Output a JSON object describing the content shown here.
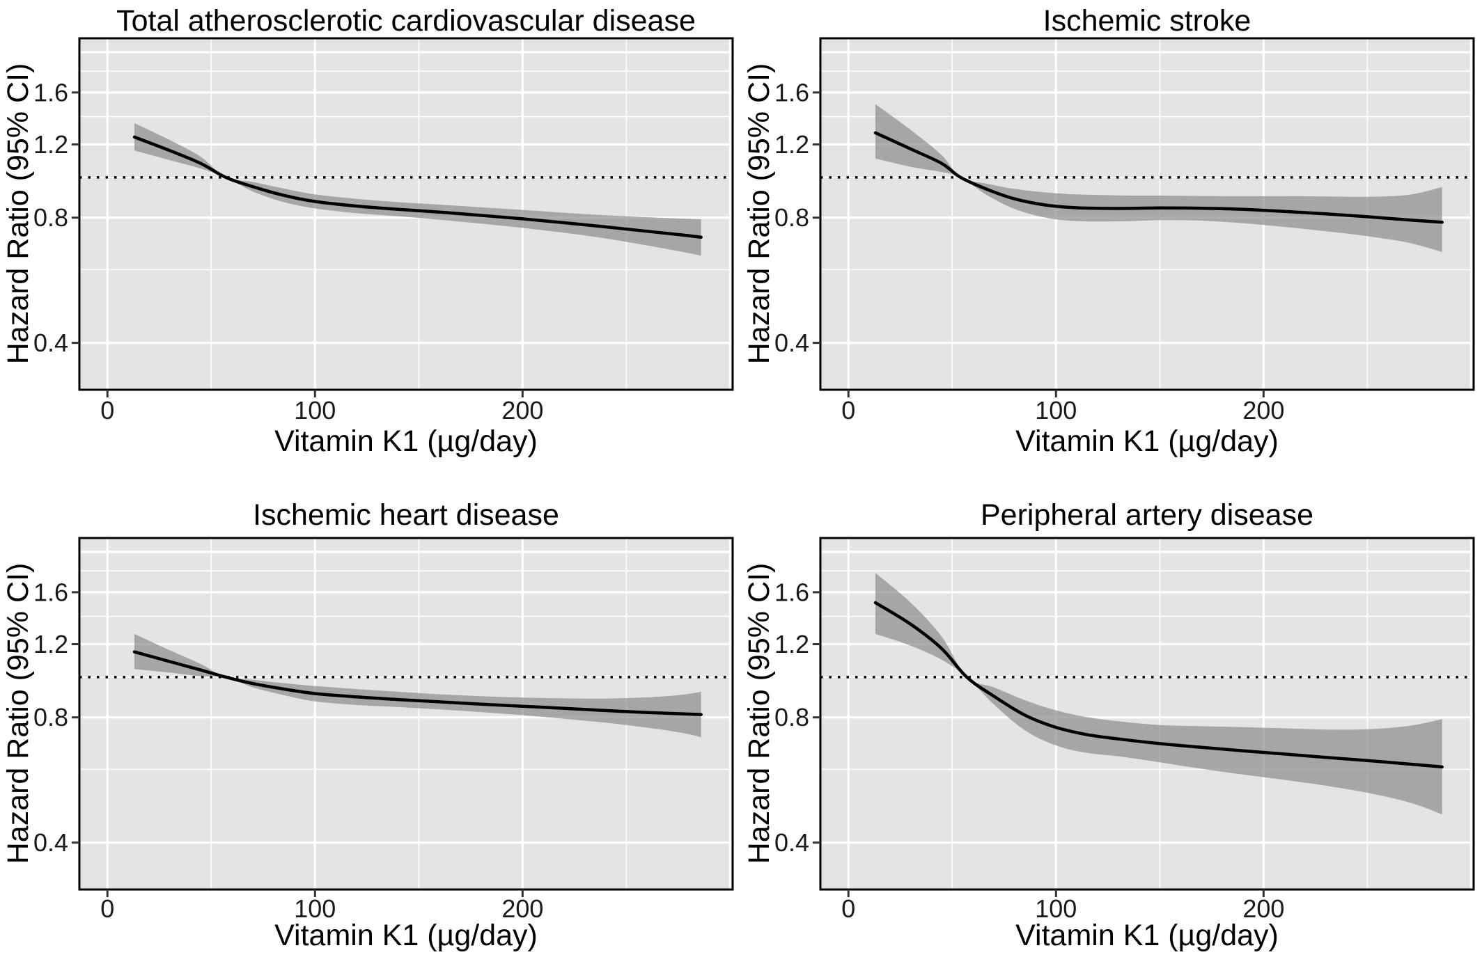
{
  "figure": {
    "background": "#ffffff",
    "panel_background": "#e4e4e4",
    "gridline_color": "#ffffff",
    "ribbon_color": "#8c8c8c",
    "ribbon_opacity": 0.7,
    "curve_color": "#000000",
    "reference_line_color": "#000000",
    "border_color": "#000000",
    "tick_mark_color": "#333333",
    "tick_label_color": "#1a1a1a"
  },
  "axes": {
    "x_label": "Vitamin K1 (µg/day)",
    "y_label": "Hazard Ratio (95% CI)",
    "y_scale": "log10",
    "x_domain": [
      -13.5,
      301.2
    ],
    "y_domain": [
      0.3085,
      2.16
    ],
    "x_ticks": [
      0,
      100,
      200
    ],
    "x_tick_labels": [
      "0",
      "100",
      "200"
    ],
    "y_ticks": [
      0.4,
      0.8,
      1.2,
      1.6
    ],
    "y_tick_labels": [
      "0.4",
      "0.8",
      "1.2",
      "1.6"
    ],
    "x_gridlines_major": [
      0,
      100,
      200,
      300
    ],
    "x_gridlines_minor": [
      50,
      150,
      250
    ],
    "y_gridlines_major": [
      0.4,
      0.8,
      1.2,
      1.6,
      2.0
    ],
    "y_gridlines_minor": [
      0.6,
      1.0,
      1.4,
      1.8
    ],
    "reference_line_y": 1.0
  },
  "chart_data": [
    {
      "title": "Total atherosclerotic cardiovascular disease",
      "type": "line",
      "x_label": "Vitamin K1 (µg/day)",
      "y_label": "Hazard Ratio (95% CI)",
      "reference_line_y": 1.0,
      "x": [
        13,
        30,
        45,
        57,
        70,
        85,
        100,
        120,
        140,
        160,
        180,
        200,
        220,
        240,
        260,
        277,
        286
      ],
      "hazard_ratio": [
        1.25,
        1.16,
        1.08,
        1.0,
        0.95,
        0.905,
        0.875,
        0.853,
        0.838,
        0.825,
        0.81,
        0.795,
        0.778,
        0.76,
        0.742,
        0.727,
        0.718
      ],
      "ci_lower": [
        1.16,
        1.1,
        1.05,
        1.0,
        0.925,
        0.872,
        0.842,
        0.82,
        0.806,
        0.791,
        0.774,
        0.756,
        0.736,
        0.713,
        0.686,
        0.662,
        0.648
      ],
      "ci_upper": [
        1.35,
        1.23,
        1.12,
        1.0,
        0.975,
        0.94,
        0.91,
        0.888,
        0.872,
        0.86,
        0.847,
        0.835,
        0.822,
        0.811,
        0.802,
        0.796,
        0.793
      ]
    },
    {
      "title": "Ischemic stroke",
      "type": "line",
      "x_label": "Vitamin K1 (µg/day)",
      "y_label": "Hazard Ratio (95% CI)",
      "reference_line_y": 1.0,
      "x": [
        13,
        30,
        45,
        54,
        67,
        80,
        95,
        110,
        130,
        150,
        170,
        190,
        210,
        230,
        250,
        270,
        286
      ],
      "hazard_ratio": [
        1.28,
        1.17,
        1.08,
        1.0,
        0.935,
        0.888,
        0.858,
        0.845,
        0.842,
        0.844,
        0.843,
        0.838,
        0.828,
        0.817,
        0.804,
        0.79,
        0.78
      ],
      "ci_lower": [
        1.11,
        1.06,
        1.03,
        1.0,
        0.905,
        0.84,
        0.8,
        0.785,
        0.784,
        0.789,
        0.787,
        0.776,
        0.76,
        0.742,
        0.722,
        0.696,
        0.662
      ],
      "ci_upper": [
        1.5,
        1.3,
        1.13,
        1.0,
        0.965,
        0.938,
        0.92,
        0.91,
        0.905,
        0.904,
        0.902,
        0.901,
        0.901,
        0.9,
        0.898,
        0.908,
        0.948
      ]
    },
    {
      "title": "Ischemic heart disease",
      "type": "line",
      "x_label": "Vitamin K1 (µg/day)",
      "y_label": "Hazard Ratio (95% CI)",
      "reference_line_y": 1.0,
      "x": [
        13,
        30,
        45,
        57,
        70,
        85,
        100,
        120,
        140,
        160,
        180,
        200,
        220,
        240,
        260,
        277,
        286
      ],
      "hazard_ratio": [
        1.15,
        1.09,
        1.04,
        1.0,
        0.965,
        0.936,
        0.913,
        0.896,
        0.883,
        0.872,
        0.861,
        0.851,
        0.841,
        0.831,
        0.822,
        0.816,
        0.813
      ],
      "ci_lower": [
        1.045,
        1.025,
        1.005,
        1.0,
        0.945,
        0.905,
        0.874,
        0.857,
        0.847,
        0.836,
        0.824,
        0.81,
        0.794,
        0.777,
        0.756,
        0.734,
        0.717
      ],
      "ci_upper": [
        1.27,
        1.16,
        1.075,
        1.0,
        0.985,
        0.967,
        0.952,
        0.936,
        0.922,
        0.909,
        0.9,
        0.893,
        0.889,
        0.888,
        0.894,
        0.907,
        0.922
      ]
    },
    {
      "title": "Peripheral artery disease",
      "type": "line",
      "x_label": "Vitamin K1 (µg/day)",
      "y_label": "Hazard Ratio (95% CI)",
      "reference_line_y": 1.0,
      "x": [
        13,
        30,
        45,
        57,
        70,
        85,
        100,
        115,
        130,
        150,
        170,
        190,
        210,
        230,
        250,
        270,
        286
      ],
      "hazard_ratio": [
        1.51,
        1.34,
        1.17,
        1.0,
        0.9,
        0.81,
        0.757,
        0.727,
        0.71,
        0.692,
        0.678,
        0.665,
        0.653,
        0.641,
        0.63,
        0.618,
        0.608
      ],
      "ci_lower": [
        1.27,
        1.19,
        1.1,
        1.0,
        0.86,
        0.745,
        0.685,
        0.657,
        0.645,
        0.624,
        0.602,
        0.583,
        0.566,
        0.548,
        0.527,
        0.5,
        0.468
      ],
      "ci_upper": [
        1.78,
        1.51,
        1.25,
        1.0,
        0.945,
        0.88,
        0.832,
        0.801,
        0.783,
        0.767,
        0.762,
        0.758,
        0.753,
        0.748,
        0.749,
        0.763,
        0.792
      ]
    }
  ]
}
